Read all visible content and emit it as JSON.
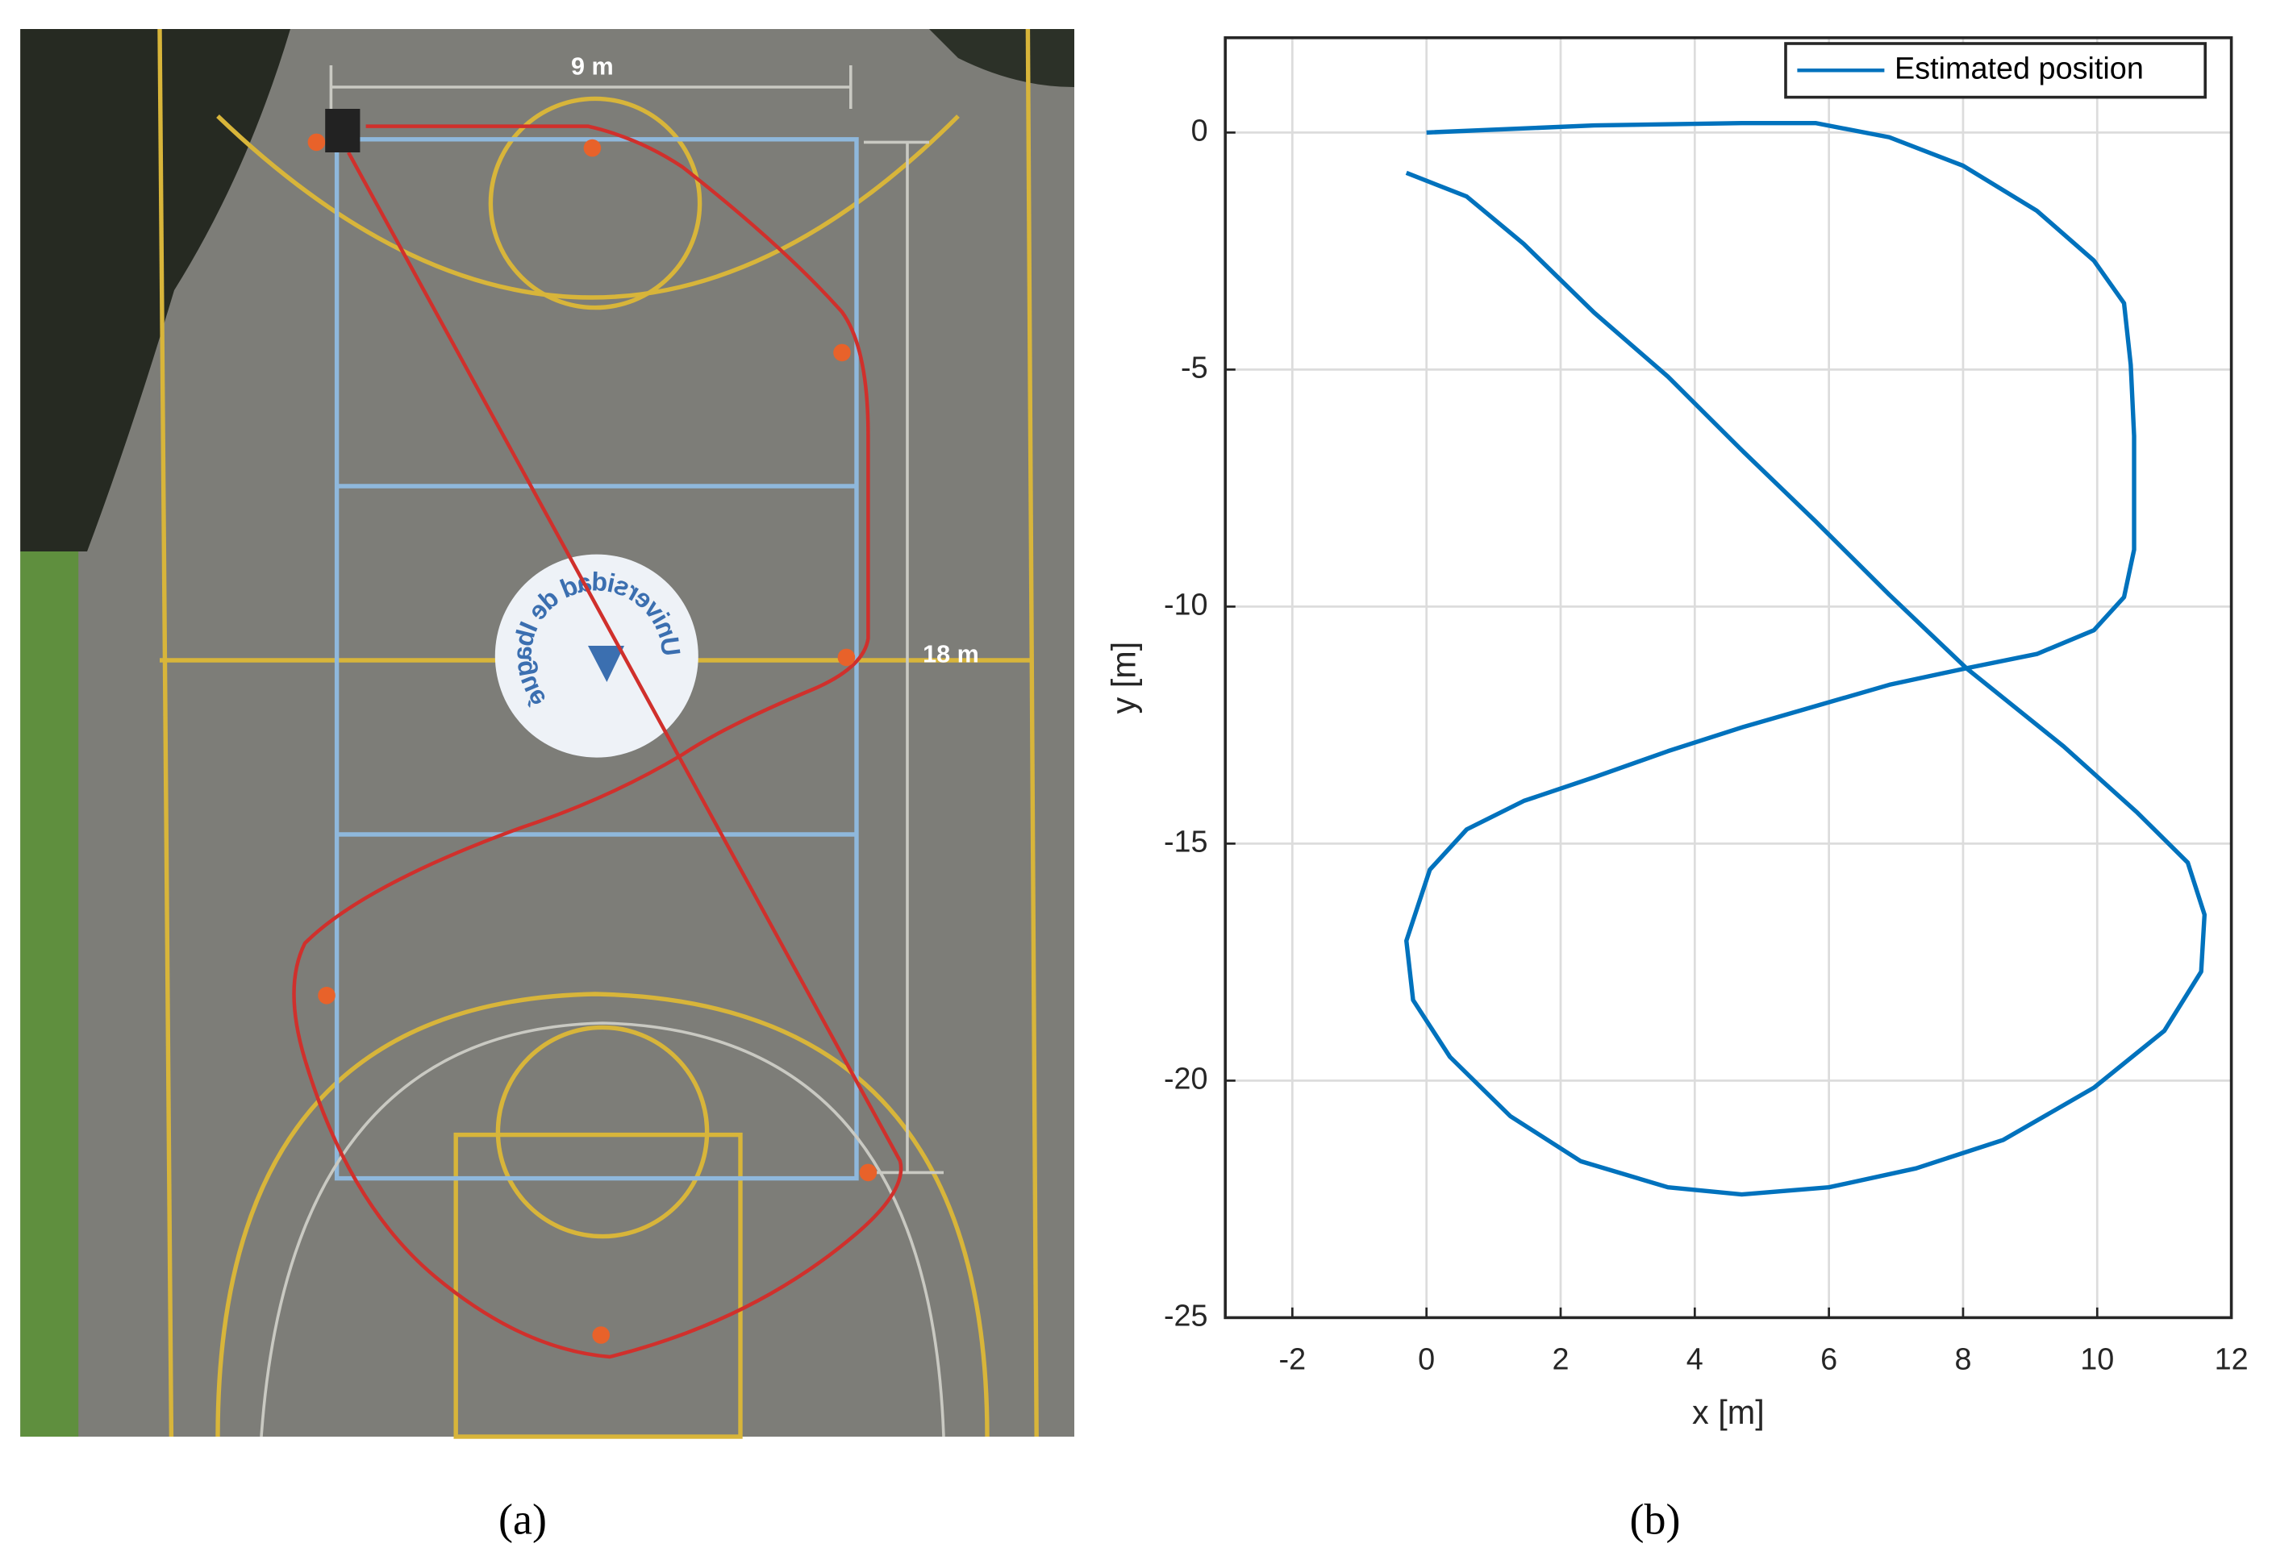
{
  "figure": {
    "panel_labels": [
      "(a)",
      "(b)"
    ]
  },
  "photo": {
    "width_label": "9 m",
    "length_label": "18 m",
    "logo_text": "Universidad de Ibagué"
  },
  "chart_data": {
    "type": "line",
    "xlabel": "x [m]",
    "ylabel": "y [m]",
    "xlim": [
      -3,
      12
    ],
    "ylim": [
      -25,
      2
    ],
    "xticks": [
      -2,
      0,
      2,
      4,
      6,
      8,
      10,
      12
    ],
    "yticks": [
      -25,
      -20,
      -15,
      -10,
      -5,
      0
    ],
    "grid": true,
    "legend": "northeast",
    "series": [
      {
        "name": "Estimated position",
        "color": "#0072bd",
        "x": [
          0,
          2.5,
          4.7,
          5.8,
          6.9,
          8,
          9.1,
          9.95,
          10.4,
          10.5,
          10.55,
          10.55,
          10.4,
          9.95,
          9.1,
          8.05,
          6.9,
          5.8,
          4.7,
          3.6,
          2.5,
          1.45,
          0.6,
          0.05,
          -0.3,
          -0.2,
          0.35,
          1.25,
          2.3,
          3.6,
          4.7,
          6.0,
          7.3,
          8.6,
          9.95,
          11.0,
          11.55,
          11.6,
          11.35,
          10.6,
          9.5,
          8.05,
          6.9,
          5.8,
          4.7,
          3.6,
          2.5,
          1.45,
          0.6,
          -0.3
        ],
        "y": [
          0,
          0.15,
          0.2,
          0.2,
          -0.1,
          -0.7,
          -1.65,
          -2.7,
          -3.6,
          -4.9,
          -6.4,
          -8.8,
          -9.8,
          -10.5,
          -11.0,
          -11.3,
          -11.65,
          -12.1,
          -12.55,
          -13.05,
          -13.6,
          -14.1,
          -14.7,
          -15.55,
          -17.05,
          -18.3,
          -19.5,
          -20.75,
          -21.7,
          -22.25,
          -22.4,
          -22.25,
          -21.85,
          -21.25,
          -20.15,
          -18.95,
          -17.7,
          -16.5,
          -15.4,
          -14.35,
          -12.95,
          -11.3,
          -9.75,
          -8.2,
          -6.7,
          -5.15,
          -3.8,
          -2.35,
          -1.35,
          -0.85
        ]
      }
    ]
  }
}
